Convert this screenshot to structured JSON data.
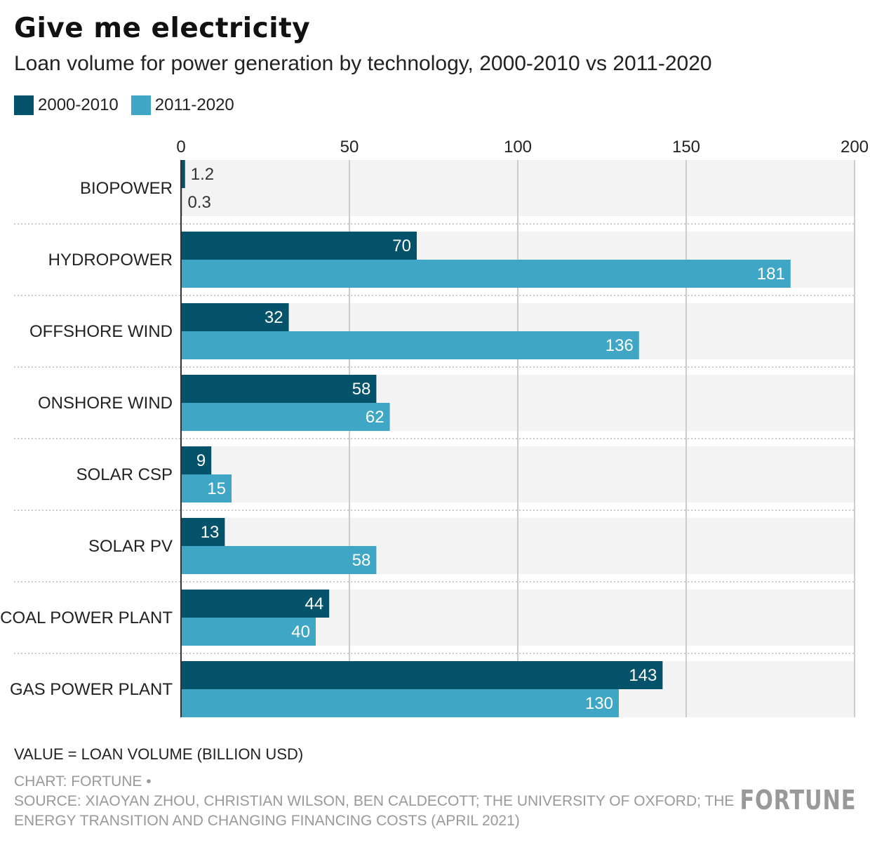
{
  "title": "Give me electricity",
  "subtitle": "Loan volume for power generation by technology, 2000-2010 vs 2011-2020",
  "note": "VALUE = LOAN VOLUME (BILLION USD)",
  "credit_line1": "CHART: FORTUNE •",
  "credit_line2": "SOURCE: XIAOYAN ZHOU, CHRISTIAN WILSON, BEN CALDECOTT; THE UNIVERSITY OF OXFORD; THE ENERGY TRANSITION AND CHANGING FINANCING COSTS (APRIL 2021)",
  "logo": "FORTUNE",
  "colors": {
    "series1": "#04536a",
    "series2": "#3fa7c5",
    "band": "#f3f3f3",
    "grid": "#cccccc"
  },
  "chart_data": {
    "type": "bar",
    "orientation": "horizontal",
    "categories": [
      "BIOPOWER",
      "HYDROPOWER",
      "OFFSHORE WIND",
      "ONSHORE WIND",
      "SOLAR CSP",
      "SOLAR PV",
      "COAL POWER PLANT",
      "GAS POWER PLANT"
    ],
    "series": [
      {
        "name": "2000-2010",
        "values": [
          1.2,
          70,
          32,
          58,
          9,
          13,
          44,
          143
        ],
        "labels": [
          "1.2",
          "70",
          "32",
          "58",
          "9",
          "13",
          "44",
          "143"
        ]
      },
      {
        "name": "2011-2020",
        "values": [
          0.3,
          181,
          136,
          62,
          15,
          58,
          40,
          130
        ],
        "labels": [
          "0.3",
          "181",
          "136",
          "62",
          "15",
          "58",
          "40",
          "130"
        ]
      }
    ],
    "xlim": [
      0,
      200
    ],
    "xticks": [
      "0",
      "50",
      "100",
      "150",
      "200"
    ],
    "grid": true,
    "legend_position": "top-left",
    "data_labels": true
  }
}
